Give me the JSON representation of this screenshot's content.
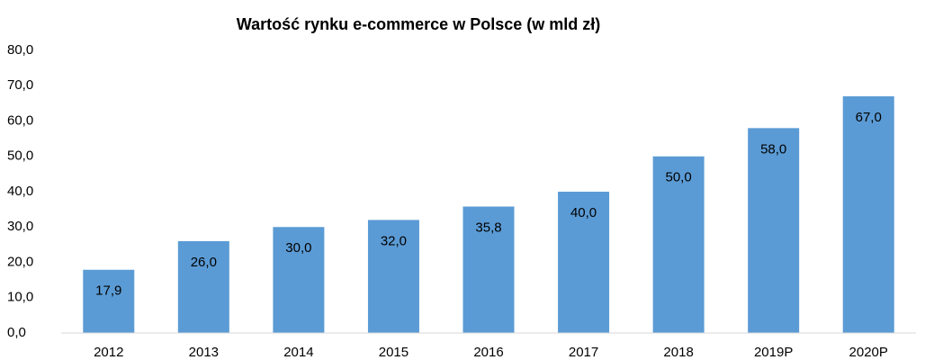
{
  "chart_data": {
    "type": "bar",
    "title": "Wartość rynku e-commerce w Polsce (w mld zł)",
    "categories": [
      "2012",
      "2013",
      "2014",
      "2015",
      "2016",
      "2017",
      "2018",
      "2019P",
      "2020P"
    ],
    "values": [
      17.9,
      26.0,
      30.0,
      32.0,
      35.8,
      40.0,
      50.0,
      58.0,
      67.0
    ],
    "value_labels": [
      "17,9",
      "26,0",
      "30,0",
      "32,0",
      "35,8",
      "40,0",
      "50,0",
      "58,0",
      "67,0"
    ],
    "color": "#5b9bd5",
    "ylim": [
      0,
      80
    ],
    "yticks": [
      {
        "value": 0,
        "label": "0,0"
      },
      {
        "value": 10,
        "label": "10,0"
      },
      {
        "value": 20,
        "label": "20,0"
      },
      {
        "value": 30,
        "label": "30,0"
      },
      {
        "value": 40,
        "label": "40,0"
      },
      {
        "value": 50,
        "label": "50,0"
      },
      {
        "value": 60,
        "label": "60,0"
      },
      {
        "value": 70,
        "label": "70,0"
      },
      {
        "value": 80,
        "label": "80,0"
      }
    ],
    "grid": false
  }
}
